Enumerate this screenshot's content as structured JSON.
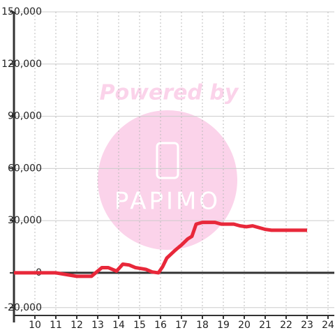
{
  "chart_data": {
    "type": "line",
    "watermark": {
      "text": "Powered by",
      "logo": "PAPIMO"
    },
    "x": [
      9,
      11,
      11.5,
      12,
      12.7,
      13.2,
      13.5,
      13.9,
      14.2,
      14.5,
      14.8,
      15.3,
      15.6,
      15.9,
      16.1,
      16.3,
      16.7,
      17,
      17.3,
      17.5,
      17.7,
      18,
      18.6,
      18.9,
      19.5,
      19.8,
      20.1,
      20.4,
      20.7,
      21,
      21.3,
      23
    ],
    "series": [
      {
        "color": "#e8283a",
        "values": [
          0,
          0,
          -1000,
          -2000,
          -2000,
          3000,
          3000,
          1000,
          5000,
          4500,
          3000,
          2000,
          500,
          0,
          3500,
          8500,
          13000,
          16000,
          19500,
          21000,
          28000,
          29000,
          29000,
          28000,
          28000,
          27000,
          26500,
          27000,
          26000,
          25000,
          24500,
          24500
        ]
      }
    ],
    "xlim": [
      9,
      24.3
    ],
    "xticks": [
      10,
      11,
      12,
      13,
      14,
      15,
      16,
      17,
      18,
      19,
      20,
      21,
      22,
      23,
      24
    ],
    "ylim": [
      -24500,
      150000
    ],
    "yticks": [
      {
        "value": -20000,
        "label": "-20,000"
      },
      0,
      {
        "value": 30000,
        "label": "30,000"
      },
      {
        "value": 60000,
        "label": "60,000"
      },
      {
        "value": 90000,
        "label": "90,000"
      },
      {
        "value": 120000,
        "label": "120,000"
      },
      {
        "value": 150000,
        "label": "150,000"
      }
    ],
    "grid": true
  }
}
